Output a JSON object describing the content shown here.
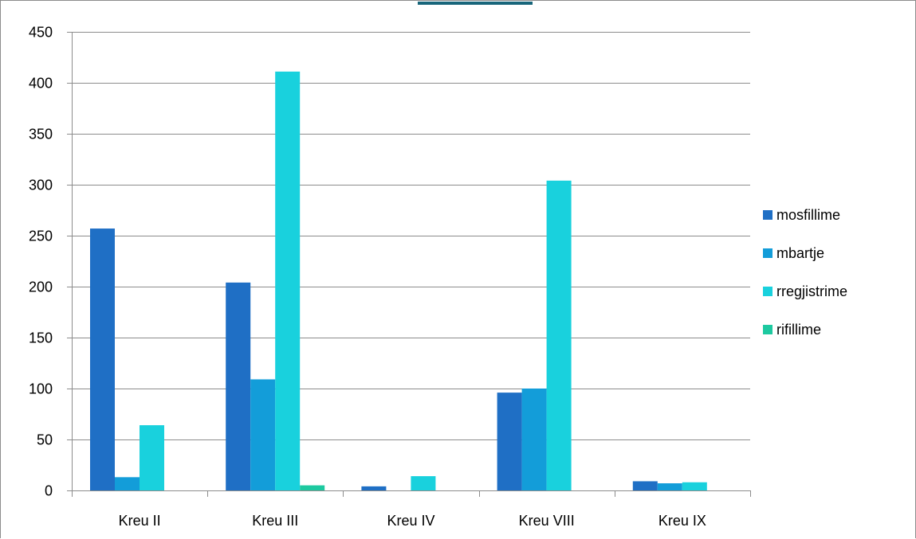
{
  "chart_data": {
    "type": "bar",
    "categories": [
      "Kreu II",
      "Kreu III",
      "Kreu IV",
      "Kreu VIII",
      "Kreu IX"
    ],
    "series": [
      {
        "name": "mosfillime",
        "color": "#1f6fc5",
        "values": [
          257,
          204,
          4,
          96,
          9
        ]
      },
      {
        "name": "mbartje",
        "color": "#139dd9",
        "values": [
          13,
          109,
          0,
          100,
          7
        ]
      },
      {
        "name": "rregjistrime",
        "color": "#19d1dd",
        "values": [
          64,
          411,
          14,
          304,
          8
        ]
      },
      {
        "name": "rifillime",
        "color": "#1dc9a0",
        "values": [
          0,
          5,
          0,
          0,
          0
        ]
      }
    ],
    "ylim": [
      0,
      450
    ],
    "yticks": [
      0,
      50,
      100,
      150,
      200,
      250,
      300,
      350,
      400,
      450
    ],
    "grid": true,
    "legend_position": "right"
  }
}
